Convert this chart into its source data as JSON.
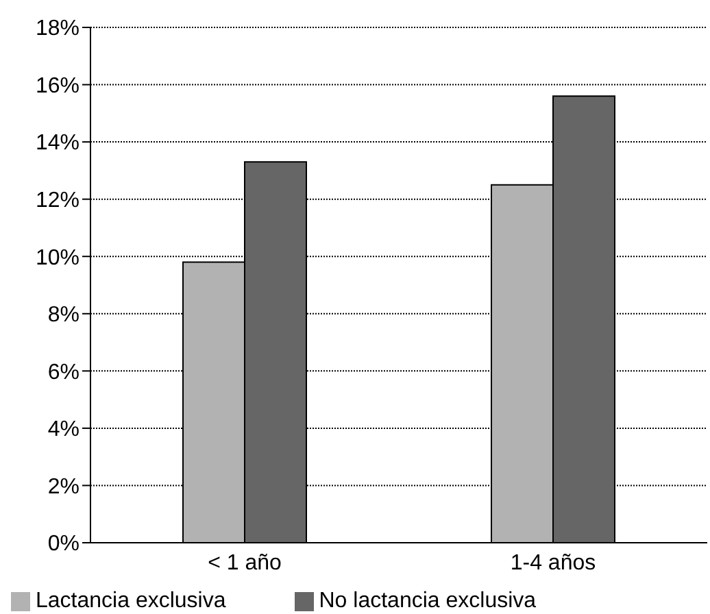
{
  "chart_data": {
    "type": "bar",
    "categories": [
      "< 1 año",
      "1-4 años"
    ],
    "series": [
      {
        "name": "Lactancia exclusiva",
        "color": "#b2b2b2",
        "values": [
          9.8,
          12.5
        ]
      },
      {
        "name": "No lactancia exclusiva",
        "color": "#666666",
        "values": [
          13.3,
          15.6
        ]
      }
    ],
    "ylim": [
      0,
      18
    ],
    "yticks": [
      {
        "value": 0,
        "label": "0%"
      },
      {
        "value": 2,
        "label": "2%"
      },
      {
        "value": 4,
        "label": "4%"
      },
      {
        "value": 6,
        "label": "6%"
      },
      {
        "value": 8,
        "label": "8%"
      },
      {
        "value": 10,
        "label": "10%"
      },
      {
        "value": 12,
        "label": "12%"
      },
      {
        "value": 14,
        "label": "14%"
      },
      {
        "value": 16,
        "label": "16%"
      },
      {
        "value": 18,
        "label": "18%"
      }
    ],
    "grid": "y",
    "legend": "bottom"
  }
}
